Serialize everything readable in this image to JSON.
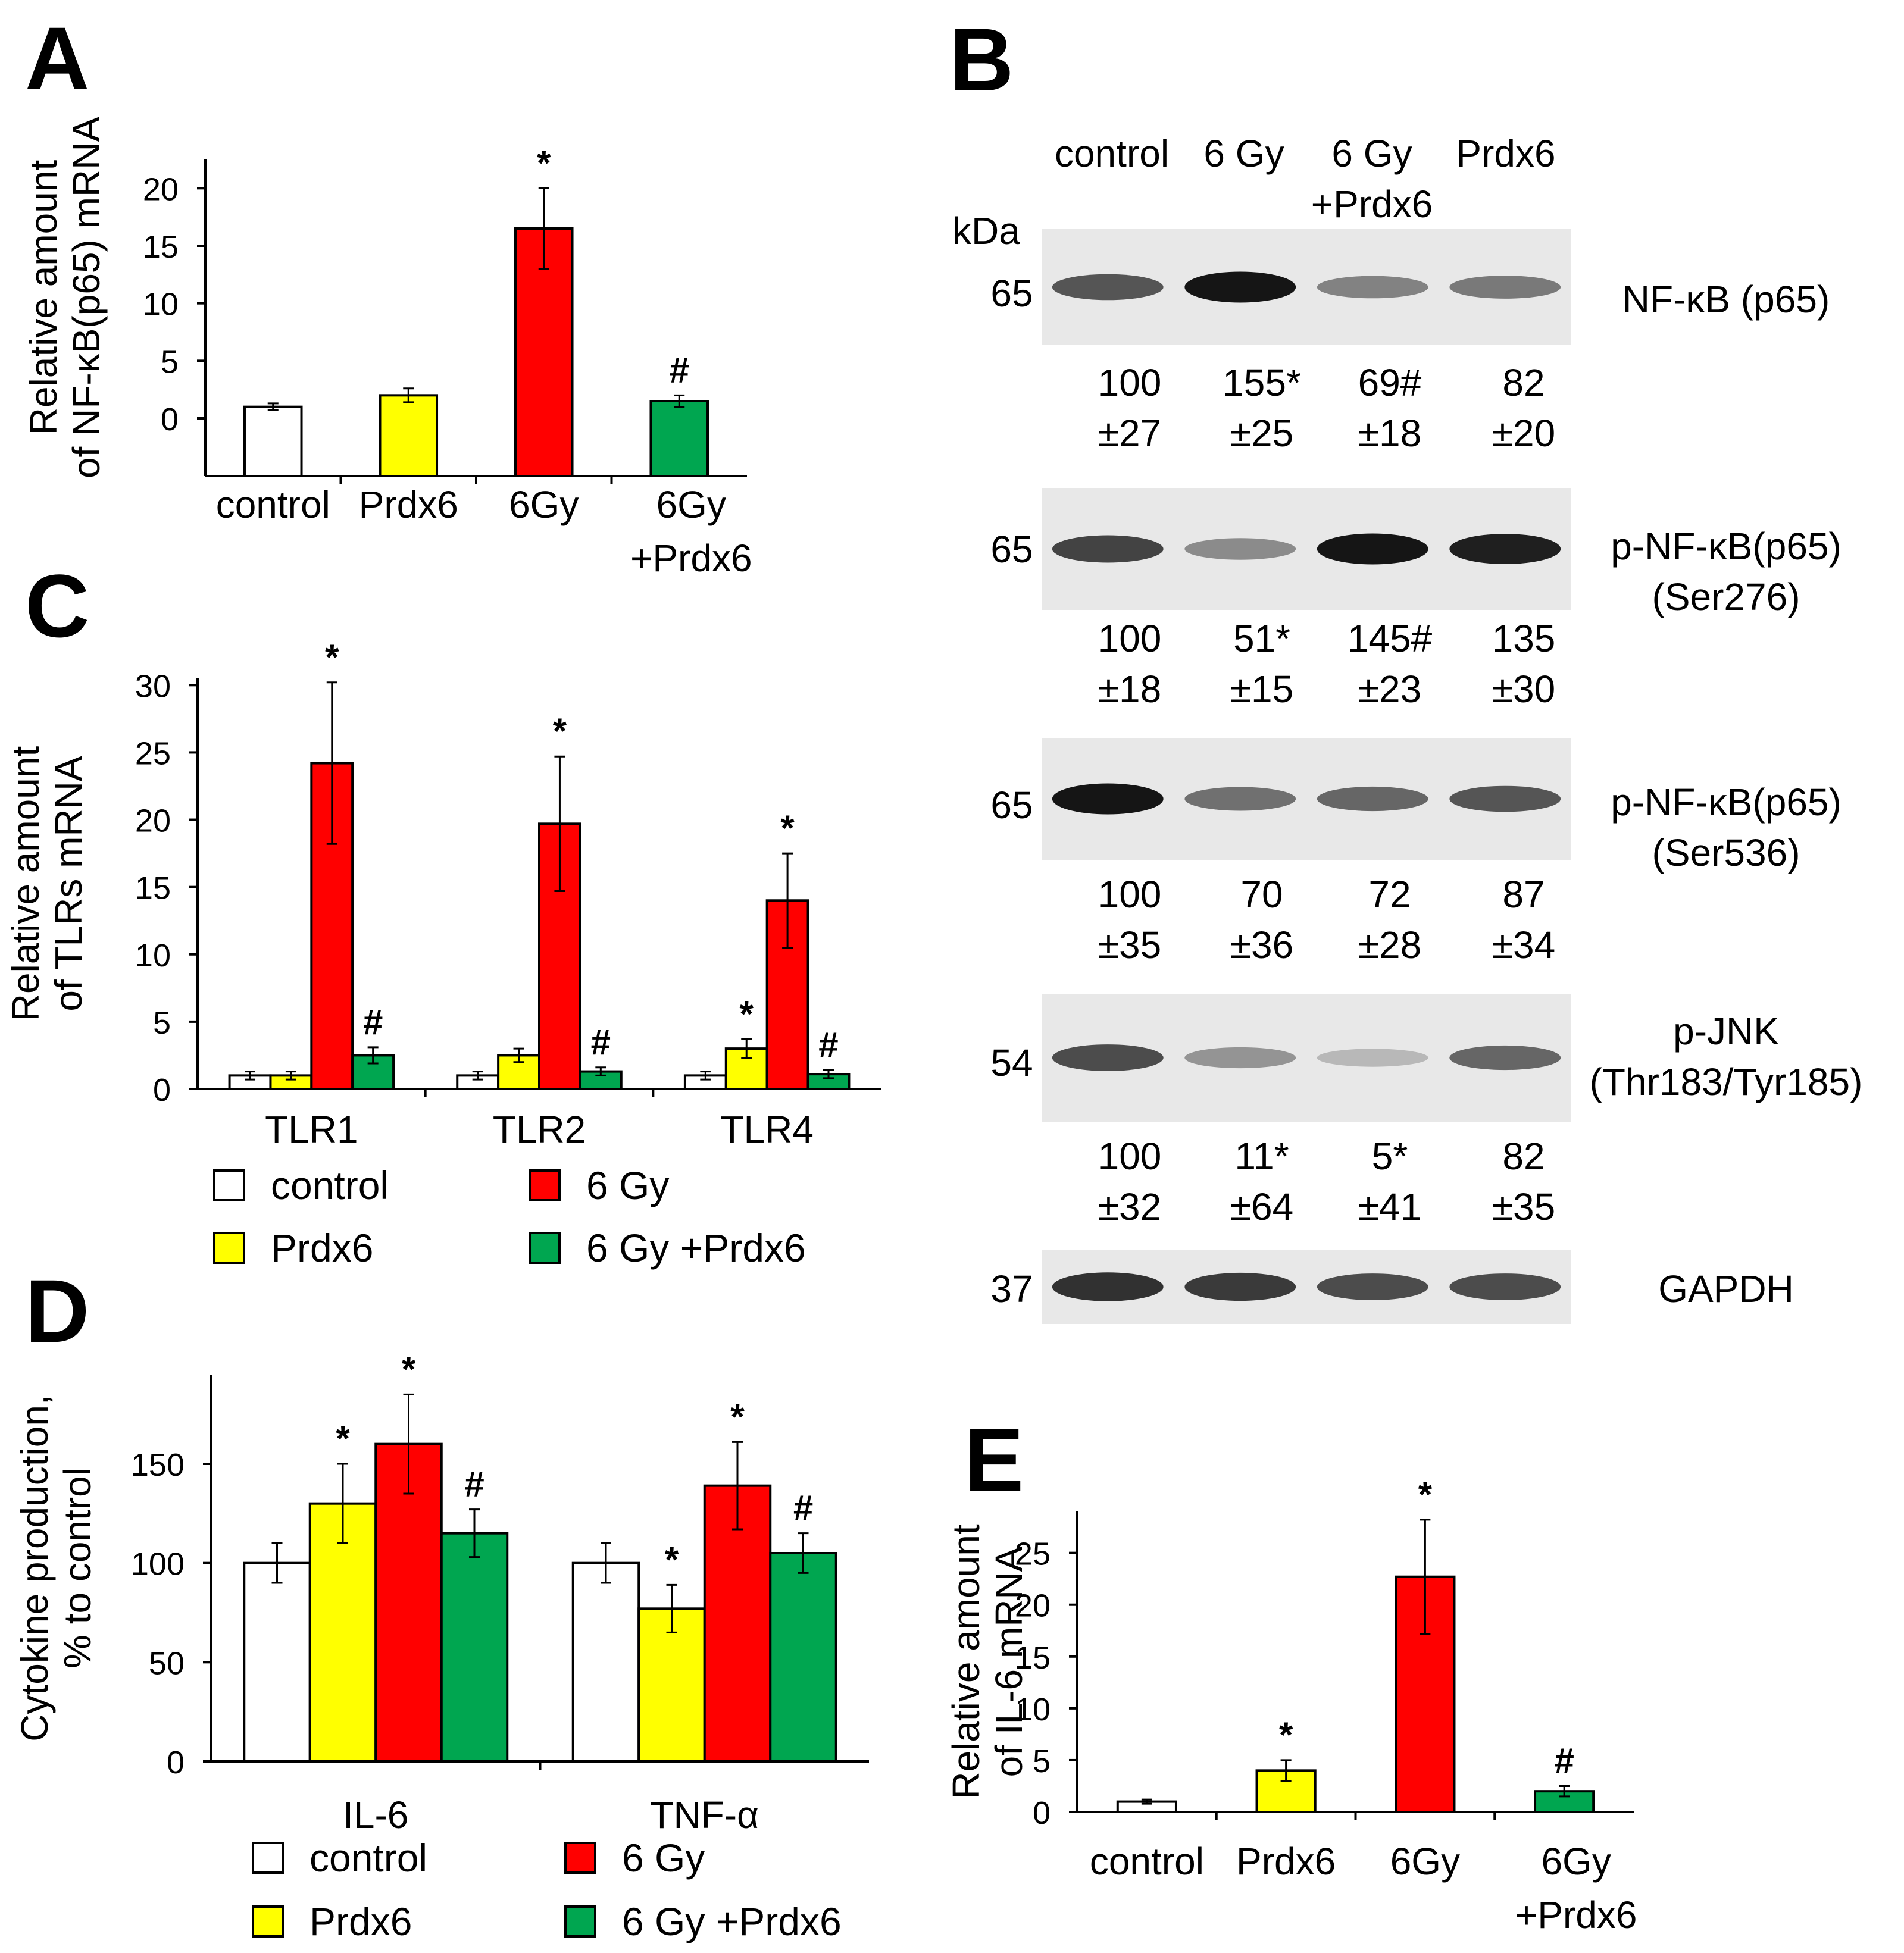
{
  "colors": {
    "control": "#ffffff",
    "prdx6": "#ffff00",
    "gy6": "#ff0000",
    "gy6_prdx6": "#00a650",
    "axis": "#000000"
  },
  "chart_data": [
    {
      "id": "A",
      "panel_label": "A",
      "type": "bar",
      "categories": [
        "control",
        "Prdx6",
        "6Gy",
        "6Gy\n+Prdx6"
      ],
      "values": [
        1,
        2,
        16.5,
        1.5
      ],
      "errors": [
        0.3,
        0.6,
        3.5,
        0.5
      ],
      "marks": [
        "",
        "",
        "*",
        "#"
      ],
      "colors": [
        "#ffffff",
        "#ffff00",
        "#ff0000",
        "#00a650"
      ],
      "ylabel": [
        "Relative amount",
        "of NF-κB(p65) mRNA"
      ],
      "yticks": [
        0,
        5,
        10,
        15,
        20
      ],
      "ylim": [
        -1.5,
        22.5
      ]
    },
    {
      "id": "C",
      "panel_label": "C",
      "type": "bar",
      "categories": [
        "TLR1",
        "TLR2",
        "TLR4"
      ],
      "series": [
        {
          "name": "control",
          "values": [
            1,
            1,
            1
          ],
          "errors": [
            0.3,
            0.3,
            0.3
          ],
          "marks": [
            "",
            "",
            ""
          ]
        },
        {
          "name": "Prdx6",
          "values": [
            1,
            2.5,
            3
          ],
          "errors": [
            0.3,
            0.5,
            0.7
          ],
          "marks": [
            "",
            "",
            "*"
          ]
        },
        {
          "name": "6 Gy",
          "values": [
            24.2,
            19.7,
            14
          ],
          "errors": [
            6,
            5,
            3.5
          ],
          "marks": [
            "*",
            "*",
            "*"
          ]
        },
        {
          "name": "6 Gy +Prdx6",
          "values": [
            2.5,
            1.3,
            1.1
          ],
          "errors": [
            0.6,
            0.3,
            0.3
          ],
          "marks": [
            "#",
            "#",
            "#"
          ]
        }
      ],
      "ylabel": [
        "Relative amount",
        "of TLRs mRNA"
      ],
      "yticks": [
        0,
        5,
        10,
        15,
        20,
        25,
        30
      ],
      "ylim": [
        0,
        30.5
      ],
      "legend": "bottom"
    },
    {
      "id": "D",
      "panel_label": "D",
      "type": "bar",
      "categories": [
        "IL-6",
        "TNF-α"
      ],
      "series": [
        {
          "name": "control",
          "values": [
            100,
            100
          ],
          "errors": [
            10,
            10
          ],
          "marks": [
            "",
            ""
          ]
        },
        {
          "name": "Prdx6",
          "values": [
            130,
            77
          ],
          "errors": [
            20,
            12
          ],
          "marks": [
            "*",
            "*"
          ]
        },
        {
          "name": "6 Gy",
          "values": [
            160,
            139
          ],
          "errors": [
            25,
            22
          ],
          "marks": [
            "*",
            "*"
          ]
        },
        {
          "name": "6 Gy +Prdx6",
          "values": [
            115,
            105
          ],
          "errors": [
            12,
            10
          ],
          "marks": [
            "#",
            "#"
          ]
        }
      ],
      "ylabel": [
        "Cytokine production,",
        "% to control"
      ],
      "yticks": [
        0,
        50,
        100,
        150
      ],
      "ylim": [
        0,
        195
      ],
      "legend": "bottom"
    },
    {
      "id": "E",
      "panel_label": "E",
      "type": "bar",
      "categories": [
        "control",
        "Prdx6",
        "6Gy",
        "6Gy\n+Prdx6"
      ],
      "values": [
        1,
        4,
        22.7,
        2
      ],
      "errors": [
        0.2,
        1,
        5.5,
        0.5
      ],
      "marks": [
        "",
        "*",
        "*",
        "#"
      ],
      "colors": [
        "#ffffff",
        "#ffff00",
        "#ff0000",
        "#00a650"
      ],
      "ylabel": [
        "Relative amount",
        "of IL-6 mRNA"
      ],
      "yticks": [
        0,
        5,
        10,
        15,
        20,
        25
      ],
      "ylim": [
        0,
        29
      ]
    }
  ],
  "blot": {
    "panel_label": "B",
    "lanes": [
      "control",
      "6 Gy",
      "6 Gy\n+Prdx6",
      "Prdx6"
    ],
    "kda_label": "kDa",
    "rows": [
      {
        "kda": "65",
        "name": "NF-κB (p65)",
        "intensity": [
          0.65,
          1.0,
          0.4,
          0.45
        ],
        "values": [
          "100\n±27",
          "155*\n±25",
          "69#\n±18",
          "82\n±20"
        ]
      },
      {
        "kda": "65",
        "name": "p-NF-κB(p65)\n(Ser276)",
        "intensity": [
          0.75,
          0.35,
          1.0,
          0.95
        ],
        "values": [
          "100\n±18",
          "51*\n±15",
          "145#\n±23",
          "135\n±30"
        ]
      },
      {
        "kda": "65",
        "name": "p-NF-κB(p65)\n(Ser536)",
        "intensity": [
          1.0,
          0.5,
          0.55,
          0.65
        ],
        "values": [
          "100\n±35",
          "70\n±36",
          "72\n±28",
          "87\n±34"
        ]
      },
      {
        "kda": "54",
        "name": "p-JNK\n(Thr183/Tyr185)",
        "intensity": [
          0.7,
          0.3,
          0.1,
          0.55
        ],
        "values": [
          "100\n±32",
          "11*\n±64",
          "5*\n±41",
          "82\n±35"
        ]
      },
      {
        "kda": "37",
        "name": "GAPDH",
        "intensity": [
          0.85,
          0.8,
          0.7,
          0.7
        ],
        "values": []
      }
    ]
  }
}
